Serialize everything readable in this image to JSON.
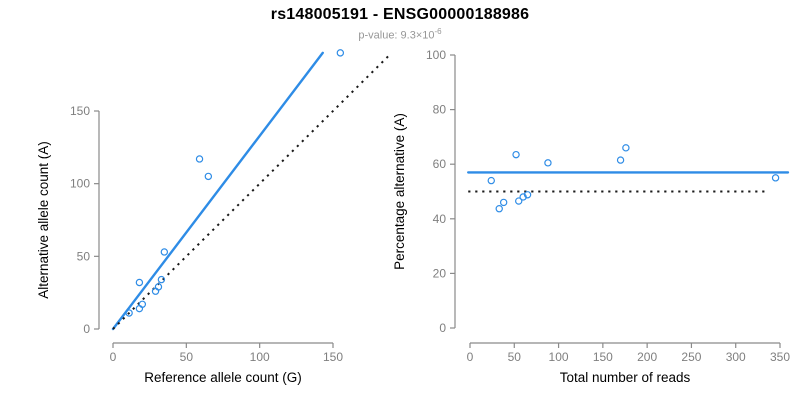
{
  "header": {
    "title": "rs148005191 - ENSG00000188986",
    "p_value_label": "p-value: 9.3×10",
    "p_value_exponent": "-6"
  },
  "colors": {
    "accent_blue": "#2E8CE6",
    "dotted_black": "#1a1a1a",
    "axis_gray": "#8a8a8a",
    "tick_label_gray": "#7f7f7f",
    "axis_title_black": "#000000",
    "subtitle_gray": "#979797",
    "background": "#ffffff"
  },
  "chart_data": [
    {
      "type": "scatter",
      "panel": "left",
      "xlabel": "Reference allele count (G)",
      "ylabel": "Alternative allele count (A)",
      "xticks": [
        0,
        50,
        100,
        150
      ],
      "yticks": [
        0,
        50,
        100,
        150
      ],
      "xlim": [
        0,
        189
      ],
      "ylim": [
        0,
        190
      ],
      "grid": false,
      "points": [
        [
          155,
          190
        ],
        [
          59,
          117
        ],
        [
          65,
          105
        ],
        [
          35,
          53
        ],
        [
          18,
          32
        ],
        [
          33,
          34
        ],
        [
          31,
          29
        ],
        [
          29,
          26
        ],
        [
          20,
          17
        ],
        [
          18,
          14
        ],
        [
          11,
          11
        ]
      ],
      "lines": [
        {
          "name": "fit-line",
          "color": "blue",
          "style": "solid",
          "from": [
            0,
            0
          ],
          "to": [
            143,
            190
          ]
        },
        {
          "name": "identity-line",
          "color": "black",
          "style": "dotted",
          "from": [
            0,
            0
          ],
          "to": [
            189,
            189
          ]
        }
      ]
    },
    {
      "type": "scatter",
      "panel": "right",
      "xlabel": "Total number of reads",
      "ylabel": "Percentage alternative (A)",
      "xticks": [
        0,
        50,
        100,
        150,
        200,
        250,
        300,
        350
      ],
      "yticks": [
        0,
        20,
        40,
        60,
        80,
        100
      ],
      "xlim": [
        0,
        359
      ],
      "ylim": [
        0,
        100
      ],
      "grid": false,
      "points": [
        [
          345,
          55
        ],
        [
          176,
          66
        ],
        [
          170,
          61.5
        ],
        [
          88,
          60.5
        ],
        [
          52,
          63.5
        ],
        [
          65,
          48.8
        ],
        [
          60,
          48
        ],
        [
          55,
          46.5
        ],
        [
          38,
          46
        ],
        [
          33,
          43.7
        ],
        [
          24,
          54
        ]
      ],
      "lines": [
        {
          "name": "fit-line",
          "color": "blue",
          "style": "solid",
          "from": [
            -2,
            57
          ],
          "to": [
            359,
            57
          ]
        },
        {
          "name": "identity-line",
          "color": "black",
          "style": "dotted",
          "from": [
            -2,
            50
          ],
          "to": [
            337,
            50
          ]
        }
      ]
    }
  ]
}
